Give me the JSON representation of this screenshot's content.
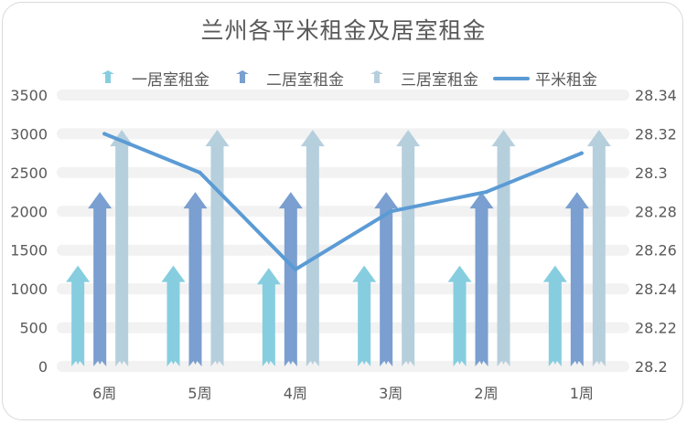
{
  "chart_data": {
    "type": "bar",
    "title": "兰州各平米租金及居室租金",
    "categories": [
      "6周",
      "5周",
      "4周",
      "3周",
      "2周",
      "1周"
    ],
    "series": [
      {
        "name": "一居室租金",
        "kind": "bar",
        "axis": "left",
        "color": "#86cedf",
        "values": [
          1300,
          1300,
          1270,
          1300,
          1300,
          1300
        ]
      },
      {
        "name": "二居室租金",
        "kind": "bar",
        "axis": "left",
        "color": "#7a9fd0",
        "values": [
          2250,
          2250,
          2250,
          2250,
          2250,
          2250
        ]
      },
      {
        "name": "三居室租金",
        "kind": "bar",
        "axis": "left",
        "color": "#b6cfdd",
        "values": [
          3050,
          3050,
          3050,
          3050,
          3050,
          3050
        ]
      },
      {
        "name": "平米租金",
        "kind": "line",
        "axis": "right",
        "color": "#5b9bd5",
        "values": [
          28.32,
          28.3,
          28.25,
          28.28,
          28.29,
          28.31
        ]
      }
    ],
    "y_left": {
      "min": 0,
      "max": 3500,
      "ticks": [
        0,
        500,
        1000,
        1500,
        2000,
        2500,
        3000,
        3500
      ]
    },
    "y_right": {
      "min": 28.2,
      "max": 28.34,
      "ticks": [
        "28.2",
        "28.22",
        "28.24",
        "28.26",
        "28.28",
        "28.3",
        "28.32",
        "28.34"
      ]
    },
    "grid": true,
    "legend_position": "top"
  }
}
